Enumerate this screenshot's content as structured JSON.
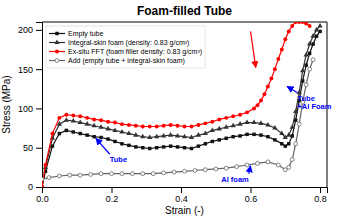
{
  "chart_data": {
    "type": "line",
    "title": "Foam-filled Tube",
    "x_label": "Strain (-)",
    "y_label": "Stress (MPa)",
    "xlim": [
      0.0,
      0.82
    ],
    "ylim": [
      0,
      210
    ],
    "xticks": [
      {
        "value": 0.0,
        "label": "0.0"
      },
      0.2,
      0.4,
      0.6,
      0.8
    ],
    "yticks": [
      0,
      50,
      100,
      150,
      200
    ],
    "grid": false,
    "legend": "upper-left",
    "series": [
      {
        "name": "Empty tube",
        "color": "#111111",
        "marker": "square",
        "x": [
          0.0,
          0.01,
          0.03,
          0.05,
          0.07,
          0.09,
          0.11,
          0.13,
          0.15,
          0.17,
          0.19,
          0.21,
          0.23,
          0.25,
          0.27,
          0.29,
          0.31,
          0.33,
          0.35,
          0.37,
          0.39,
          0.41,
          0.43,
          0.45,
          0.47,
          0.49,
          0.51,
          0.53,
          0.55,
          0.57,
          0.59,
          0.61,
          0.63,
          0.65,
          0.67,
          0.69,
          0.7,
          0.71,
          0.72,
          0.73,
          0.74,
          0.75,
          0.76,
          0.77,
          0.78,
          0.79,
          0.8
        ],
        "values": [
          0,
          20,
          52,
          68,
          72,
          70,
          68,
          66,
          64,
          63,
          61,
          58,
          55,
          53,
          51,
          50,
          49,
          50,
          51,
          52,
          51,
          50,
          49,
          52,
          55,
          58,
          60,
          62,
          64,
          65,
          67,
          67,
          66,
          64,
          60,
          55,
          52,
          55,
          65,
          85,
          110,
          135,
          155,
          170,
          182,
          192,
          198
        ]
      },
      {
        "name": "Integral-skin foam (density: 0.83 g/cm³)",
        "color": "#333333",
        "marker": "triangle",
        "x": [
          0.0,
          0.01,
          0.03,
          0.05,
          0.07,
          0.09,
          0.11,
          0.13,
          0.15,
          0.17,
          0.19,
          0.21,
          0.23,
          0.25,
          0.27,
          0.29,
          0.31,
          0.33,
          0.35,
          0.37,
          0.39,
          0.41,
          0.43,
          0.45,
          0.47,
          0.49,
          0.51,
          0.53,
          0.55,
          0.57,
          0.59,
          0.61,
          0.63,
          0.65,
          0.67,
          0.69,
          0.7,
          0.71,
          0.72,
          0.73,
          0.74,
          0.75,
          0.76,
          0.77,
          0.78,
          0.79,
          0.8
        ],
        "values": [
          0,
          25,
          62,
          80,
          85,
          84,
          82,
          80,
          78,
          76,
          74,
          72,
          70,
          68,
          66,
          64,
          63,
          64,
          65,
          66,
          65,
          64,
          63,
          66,
          68,
          72,
          74,
          76,
          78,
          80,
          82,
          82,
          81,
          79,
          75,
          68,
          63,
          66,
          76,
          96,
          120,
          148,
          168,
          182,
          192,
          200,
          205
        ]
      },
      {
        "name": "Ex-situ FFT (foam filler density: 0.83 g/cm³)",
        "color": "#FF0000",
        "marker": "circle",
        "x": [
          0.0,
          0.01,
          0.03,
          0.05,
          0.07,
          0.09,
          0.11,
          0.13,
          0.15,
          0.17,
          0.19,
          0.21,
          0.23,
          0.25,
          0.27,
          0.29,
          0.31,
          0.33,
          0.35,
          0.37,
          0.39,
          0.41,
          0.43,
          0.45,
          0.47,
          0.49,
          0.51,
          0.53,
          0.55,
          0.57,
          0.59,
          0.61,
          0.62,
          0.63,
          0.64,
          0.65,
          0.66,
          0.67,
          0.68,
          0.69,
          0.7,
          0.71,
          0.72,
          0.73,
          0.74,
          0.75,
          0.76,
          0.77
        ],
        "values": [
          0,
          28,
          68,
          88,
          92,
          91,
          90,
          88,
          86,
          85,
          83,
          82,
          80,
          79,
          78,
          77,
          77,
          77,
          78,
          79,
          78,
          77,
          77,
          79,
          81,
          83,
          86,
          88,
          90,
          92,
          95,
          100,
          104,
          110,
          118,
          128,
          138,
          150,
          163,
          175,
          188,
          198,
          205,
          210,
          210,
          210,
          208,
          205
        ]
      },
      {
        "name": "Add (empty tube + integral-skin foam)",
        "color": "#666666",
        "marker": "open-circle",
        "x": [
          0.0,
          0.02,
          0.05,
          0.08,
          0.11,
          0.14,
          0.17,
          0.2,
          0.23,
          0.26,
          0.29,
          0.32,
          0.35,
          0.38,
          0.41,
          0.44,
          0.47,
          0.5,
          0.53,
          0.56,
          0.59,
          0.62,
          0.65,
          0.68,
          0.7,
          0.71,
          0.72,
          0.73,
          0.74,
          0.75,
          0.76,
          0.77,
          0.78
        ],
        "values": [
          10,
          12,
          14,
          15,
          15,
          16,
          17,
          17,
          17,
          17,
          17,
          17,
          18,
          19,
          20,
          21,
          22,
          23,
          24,
          26,
          28,
          30,
          32,
          28,
          22,
          25,
          35,
          55,
          80,
          108,
          130,
          150,
          162
        ]
      }
    ],
    "annotations": [
      {
        "text": "Tube",
        "x": 0.155,
        "y": 62,
        "text_x": 0.195,
        "text_y": 35,
        "color": "#0000FF"
      },
      {
        "text": "Al foam",
        "x": 0.6,
        "y": 27,
        "text_x": 0.595,
        "text_y": 10,
        "color": "#0000FF"
      },
      {
        "text": "Tube\n+Al Foam",
        "x": 0.705,
        "y": 128,
        "text_x": 0.735,
        "text_y": 108,
        "color": "#0000FF"
      },
      {
        "x": 0.615,
        "y": 152,
        "text_x": 0.6,
        "text_y": 198,
        "color": "#FF0000"
      }
    ]
  }
}
